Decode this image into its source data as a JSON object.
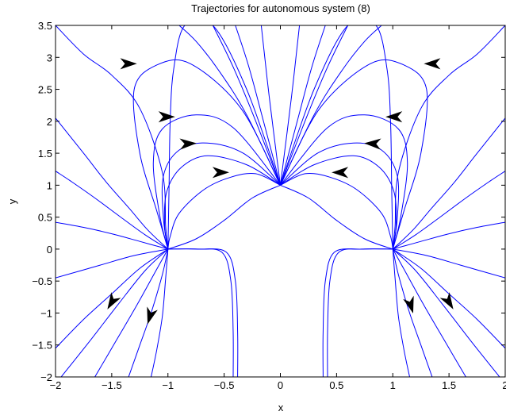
{
  "chart_data": {
    "type": "line",
    "title": "Trajectories for autonomous system (8)",
    "xlabel": "x",
    "ylabel": "y",
    "xlim": [
      -2,
      2
    ],
    "ylim": [
      -2,
      3.5
    ],
    "xticks": [
      -2,
      -1.5,
      -1,
      -0.5,
      0,
      0.5,
      1,
      1.5,
      2
    ],
    "yticks": [
      -2,
      -1.5,
      -1,
      -0.5,
      0,
      0.5,
      1,
      1.5,
      2,
      2.5,
      3,
      3.5
    ],
    "xtick_labels": [
      "−2",
      "−1.5",
      "−1",
      "−0.5",
      "0",
      "0.5",
      "1",
      "1.5",
      "2"
    ],
    "ytick_labels": [
      "−2",
      "−1.5",
      "−1",
      "−0.5",
      "0",
      "0.5",
      "1",
      "1.5",
      "2",
      "2.5",
      "3",
      "3.5"
    ],
    "grid": false,
    "line_color": "#0000ff",
    "arrow_color": "#000000",
    "equilibria": [
      [
        -1,
        0
      ],
      [
        0,
        1
      ],
      [
        1,
        0
      ]
    ],
    "series": [
      {
        "x": [
          -1,
          -1.18,
          -1.35,
          -1.55,
          -1.75,
          -2.0
        ],
        "y": [
          0,
          0.3,
          0.65,
          1.05,
          1.5,
          2.05
        ]
      },
      {
        "x": [
          -1,
          -1.2,
          -1.42,
          -1.65,
          -1.87,
          -2.0
        ],
        "y": [
          0,
          0.22,
          0.5,
          0.8,
          1.07,
          1.22
        ]
      },
      {
        "x": [
          -1,
          -1.25,
          -1.5,
          -1.75,
          -2.0
        ],
        "y": [
          0,
          0.12,
          0.24,
          0.34,
          0.42
        ]
      },
      {
        "x": [
          -1,
          -1.02,
          -1.05,
          -1.25,
          -1.5,
          -1.75,
          -2.0
        ],
        "y": [
          0,
          0.35,
          1.2,
          2.2,
          2.72,
          3.05,
          3.5
        ]
      },
      {
        "x": [
          -1,
          -0.99,
          -0.98,
          -0.95,
          -0.85,
          -0.6,
          -0.3,
          0
        ],
        "y": [
          0,
          1.0,
          2.0,
          2.8,
          3.5,
          3.5,
          2.5,
          1
        ]
      },
      {
        "x": [
          -1,
          -1.1,
          -1.25,
          -1.3,
          -1.1,
          -0.8,
          -0.35,
          0
        ],
        "y": [
          0,
          0.6,
          1.5,
          2.5,
          2.88,
          2.9,
          2.2,
          1
        ]
      },
      {
        "x": [
          -1,
          -1.07,
          -1.13,
          -1.05,
          -0.75,
          -0.42,
          0
        ],
        "y": [
          0,
          0.5,
          1.35,
          1.88,
          2.1,
          1.9,
          1
        ]
      },
      {
        "x": [
          -1,
          -1.04,
          -1.04,
          -0.9,
          -0.65,
          -0.33,
          0
        ],
        "y": [
          0,
          0.48,
          1.15,
          1.55,
          1.66,
          1.5,
          1
        ]
      },
      {
        "x": [
          -1,
          -1.03,
          -1.01,
          -0.88,
          -0.65,
          -0.3,
          0
        ],
        "y": [
          0,
          0.38,
          0.9,
          1.28,
          1.46,
          1.32,
          1
        ]
      },
      {
        "x": [
          -1,
          -0.98,
          -0.9,
          -0.68,
          -0.45,
          -0.22,
          0
        ],
        "y": [
          0,
          0.2,
          0.56,
          0.93,
          1.12,
          1.18,
          1
        ]
      },
      {
        "x": [
          -1,
          -0.75,
          -0.5,
          -0.25,
          0
        ],
        "y": [
          0,
          0.16,
          0.45,
          0.8,
          1
        ]
      },
      {
        "x": [
          0,
          -0.3,
          -0.55,
          -0.75,
          -0.9
        ],
        "y": [
          1,
          2.1,
          2.8,
          3.25,
          3.5
        ]
      },
      {
        "x": [
          0,
          -0.23,
          -0.42,
          -0.6
        ],
        "y": [
          1,
          2.05,
          2.85,
          3.5
        ]
      },
      {
        "x": [
          0,
          -0.15,
          -0.28,
          -0.4
        ],
        "y": [
          1,
          2.0,
          2.85,
          3.5
        ]
      },
      {
        "x": [
          0,
          -0.1,
          -0.17
        ],
        "y": [
          1,
          2.4,
          3.5
        ]
      },
      {
        "x": [
          -1,
          -1.3,
          -1.6,
          -2.0
        ],
        "y": [
          0,
          -0.1,
          -0.25,
          -0.45
        ]
      },
      {
        "x": [
          -1,
          -1.25,
          -1.5,
          -1.75,
          -2.0
        ],
        "y": [
          0,
          -0.3,
          -0.7,
          -1.1,
          -1.55
        ]
      },
      {
        "x": [
          -1,
          -1.2,
          -1.45,
          -1.7,
          -1.95
        ],
        "y": [
          0,
          -0.33,
          -0.88,
          -1.45,
          -2.0
        ]
      },
      {
        "x": [
          -1,
          -1.12,
          -1.3,
          -1.5,
          -1.65
        ],
        "y": [
          0,
          -0.38,
          -0.95,
          -1.55,
          -2.0
        ]
      },
      {
        "x": [
          -1,
          -1.05,
          -1.15,
          -1.26,
          -1.35
        ],
        "y": [
          0,
          -0.4,
          -1.0,
          -1.55,
          -2.0
        ]
      },
      {
        "x": [
          -1,
          -1.02,
          -1.05,
          -1.1,
          -1.15
        ],
        "y": [
          0,
          -0.45,
          -1.05,
          -1.58,
          -2.0
        ]
      },
      {
        "x": [
          -1,
          -0.75,
          -0.52,
          -0.44,
          -0.42,
          -0.42
        ],
        "y": [
          0,
          0,
          -0.05,
          -0.5,
          -1.3,
          -2.0
        ]
      },
      {
        "x": [
          -1,
          -0.72,
          -0.48,
          -0.4,
          -0.38,
          -0.38
        ],
        "y": [
          0,
          0,
          -0.05,
          -0.5,
          -1.3,
          -2.0
        ]
      },
      {
        "x": [
          1,
          1.18,
          1.35,
          1.55,
          1.75,
          2.0
        ],
        "y": [
          0,
          0.3,
          0.65,
          1.05,
          1.5,
          2.05
        ]
      },
      {
        "x": [
          1,
          1.2,
          1.42,
          1.65,
          1.87,
          2.0
        ],
        "y": [
          0,
          0.22,
          0.5,
          0.8,
          1.07,
          1.22
        ]
      },
      {
        "x": [
          1,
          1.25,
          1.5,
          1.75,
          2.0
        ],
        "y": [
          0,
          0.12,
          0.24,
          0.34,
          0.42
        ]
      },
      {
        "x": [
          1,
          1.02,
          1.05,
          1.25,
          1.5,
          1.75,
          2.0
        ],
        "y": [
          0,
          0.35,
          1.2,
          2.2,
          2.72,
          3.05,
          3.5
        ]
      },
      {
        "x": [
          1,
          0.99,
          0.98,
          0.95,
          0.85,
          0.6,
          0.3,
          0
        ],
        "y": [
          0,
          1.0,
          2.0,
          2.8,
          3.5,
          3.5,
          2.5,
          1
        ]
      },
      {
        "x": [
          1,
          1.1,
          1.25,
          1.3,
          1.1,
          0.8,
          0.35,
          0
        ],
        "y": [
          0,
          0.6,
          1.5,
          2.5,
          2.88,
          2.9,
          2.2,
          1
        ]
      },
      {
        "x": [
          1,
          1.07,
          1.13,
          1.05,
          0.75,
          0.42,
          0
        ],
        "y": [
          0,
          0.5,
          1.35,
          1.88,
          2.1,
          1.9,
          1
        ]
      },
      {
        "x": [
          1,
          1.04,
          1.04,
          0.9,
          0.65,
          0.33,
          0
        ],
        "y": [
          0,
          0.48,
          1.15,
          1.55,
          1.66,
          1.5,
          1
        ]
      },
      {
        "x": [
          1,
          1.03,
          1.01,
          0.88,
          0.65,
          0.3,
          0
        ],
        "y": [
          0,
          0.38,
          0.9,
          1.28,
          1.46,
          1.32,
          1
        ]
      },
      {
        "x": [
          1,
          0.98,
          0.9,
          0.68,
          0.45,
          0.22,
          0
        ],
        "y": [
          0,
          0.2,
          0.56,
          0.93,
          1.12,
          1.18,
          1
        ]
      },
      {
        "x": [
          1,
          0.75,
          0.5,
          0.25,
          0
        ],
        "y": [
          0,
          0.16,
          0.45,
          0.8,
          1
        ]
      },
      {
        "x": [
          0,
          0.3,
          0.55,
          0.75,
          0.9
        ],
        "y": [
          1,
          2.1,
          2.8,
          3.25,
          3.5
        ]
      },
      {
        "x": [
          0,
          0.23,
          0.42,
          0.6
        ],
        "y": [
          1,
          2.05,
          2.85,
          3.5
        ]
      },
      {
        "x": [
          0,
          0.15,
          0.28,
          0.4
        ],
        "y": [
          1,
          2.0,
          2.85,
          3.5
        ]
      },
      {
        "x": [
          0,
          0.1,
          0.17
        ],
        "y": [
          1,
          2.4,
          3.5
        ]
      },
      {
        "x": [
          1,
          1.3,
          1.6,
          2.0
        ],
        "y": [
          0,
          -0.1,
          -0.25,
          -0.45
        ]
      },
      {
        "x": [
          1,
          1.25,
          1.5,
          1.75,
          2.0
        ],
        "y": [
          0,
          -0.3,
          -0.7,
          -1.1,
          -1.55
        ]
      },
      {
        "x": [
          1,
          1.2,
          1.45,
          1.7,
          1.95
        ],
        "y": [
          0,
          -0.33,
          -0.88,
          -1.45,
          -2.0
        ]
      },
      {
        "x": [
          1,
          1.12,
          1.3,
          1.5,
          1.65
        ],
        "y": [
          0,
          -0.38,
          -0.95,
          -1.55,
          -2.0
        ]
      },
      {
        "x": [
          1,
          1.05,
          1.15,
          1.26,
          1.35
        ],
        "y": [
          0,
          -0.4,
          -1.0,
          -1.55,
          -2.0
        ]
      },
      {
        "x": [
          1,
          1.02,
          1.05,
          1.1,
          1.15
        ],
        "y": [
          0,
          -0.45,
          -1.05,
          -1.58,
          -2.0
        ]
      },
      {
        "x": [
          1,
          0.75,
          0.52,
          0.44,
          0.42,
          0.42
        ],
        "y": [
          0,
          0,
          -0.05,
          -0.5,
          -1.3,
          -2.0
        ]
      },
      {
        "x": [
          1,
          0.72,
          0.48,
          0.4,
          0.38,
          0.38
        ],
        "y": [
          0,
          0,
          -0.05,
          -0.5,
          -1.3,
          -2.0
        ]
      }
    ],
    "arrows": [
      {
        "x": -1.35,
        "y": 2.9,
        "dx": 1,
        "dy": 0
      },
      {
        "x": -1.01,
        "y": 2.07,
        "dx": 1,
        "dy": 0
      },
      {
        "x": -0.82,
        "y": 1.65,
        "dx": 1,
        "dy": 0.05
      },
      {
        "x": -0.53,
        "y": 1.2,
        "dx": 1,
        "dy": 0
      },
      {
        "x": 1.35,
        "y": 2.9,
        "dx": -1,
        "dy": 0
      },
      {
        "x": 1.01,
        "y": 2.07,
        "dx": -1,
        "dy": 0
      },
      {
        "x": 0.82,
        "y": 1.65,
        "dx": -1,
        "dy": 0.05
      },
      {
        "x": 0.53,
        "y": 1.2,
        "dx": -1,
        "dy": 0
      },
      {
        "x": -1.5,
        "y": -0.83,
        "dx": -0.6,
        "dy": -1
      },
      {
        "x": -1.16,
        "y": -1.05,
        "dx": -0.3,
        "dy": -1
      },
      {
        "x": 1.16,
        "y": -0.88,
        "dx": 0.3,
        "dy": -1
      },
      {
        "x": 1.5,
        "y": -0.83,
        "dx": 0.6,
        "dy": -1
      }
    ]
  }
}
